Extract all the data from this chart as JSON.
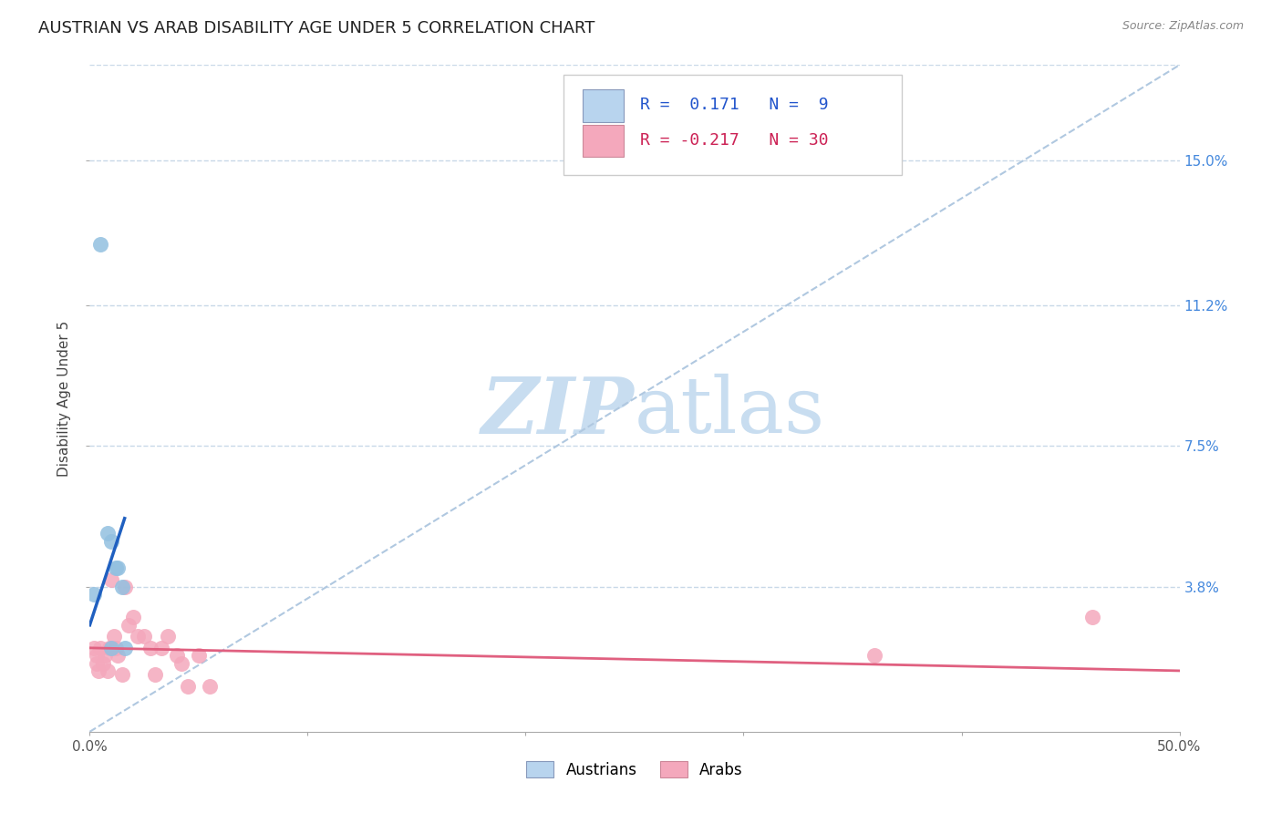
{
  "title": "AUSTRIAN VS ARAB DISABILITY AGE UNDER 5 CORRELATION CHART",
  "source": "Source: ZipAtlas.com",
  "ylabel": "Disability Age Under 5",
  "xlim": [
    0.0,
    0.5
  ],
  "ylim": [
    0.0,
    0.175
  ],
  "right_ytick_labels": [
    "15.0%",
    "11.2%",
    "7.5%",
    "3.8%"
  ],
  "right_ytick_values": [
    0.15,
    0.112,
    0.075,
    0.038
  ],
  "austrian_x": [
    0.005,
    0.002,
    0.008,
    0.01,
    0.012,
    0.013,
    0.015,
    0.016,
    0.01
  ],
  "austrian_y": [
    0.128,
    0.036,
    0.052,
    0.05,
    0.043,
    0.043,
    0.038,
    0.022,
    0.022
  ],
  "arab_x": [
    0.002,
    0.003,
    0.003,
    0.004,
    0.005,
    0.006,
    0.007,
    0.008,
    0.009,
    0.01,
    0.011,
    0.012,
    0.013,
    0.015,
    0.016,
    0.018,
    0.02,
    0.022,
    0.025,
    0.028,
    0.03,
    0.033,
    0.036,
    0.04,
    0.042,
    0.045,
    0.05,
    0.055,
    0.36,
    0.46
  ],
  "arab_y": [
    0.022,
    0.02,
    0.018,
    0.016,
    0.022,
    0.018,
    0.02,
    0.016,
    0.022,
    0.04,
    0.025,
    0.022,
    0.02,
    0.015,
    0.038,
    0.028,
    0.03,
    0.025,
    0.025,
    0.022,
    0.015,
    0.022,
    0.025,
    0.02,
    0.018,
    0.012,
    0.02,
    0.012,
    0.02,
    0.03
  ],
  "austrian_color": "#92c0e0",
  "arab_color": "#f4a8bc",
  "austrian_line_color": "#2060c0",
  "arab_line_color": "#e06080",
  "diagonal_color": "#b0c8e0",
  "background_color": "#ffffff",
  "grid_color": "#c8d8e8",
  "legend_R_austrian": "0.171",
  "legend_N_austrian": "9",
  "legend_R_arab": "-0.217",
  "legend_N_arab": "30",
  "watermark_zip": "ZIP",
  "watermark_atlas": "atlas",
  "watermark_color_zip": "#c8ddf0",
  "watermark_color_atlas": "#c8ddf0",
  "title_fontsize": 13,
  "axis_label_fontsize": 11,
  "tick_fontsize": 11,
  "legend_fontsize": 13
}
